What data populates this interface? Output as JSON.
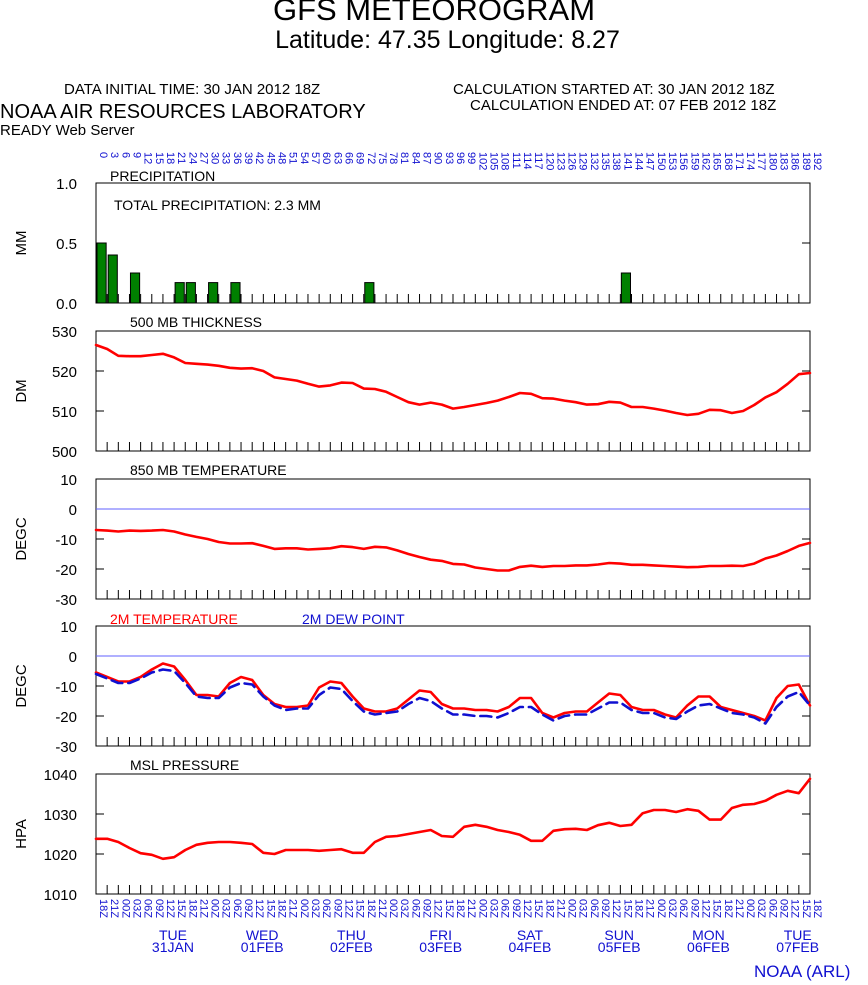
{
  "header": {
    "title": "GFS METEOROGRAM",
    "subtitle": "Latitude: 47.35 Longitude:   8.27",
    "data_initial": "DATA INITIAL TIME: 30 JAN 2012 18Z",
    "calc_started": "CALCULATION STARTED AT: 30 JAN 2012 18Z",
    "calc_ended": "CALCULATION ENDED AT: 07 FEB 2012 18Z",
    "lab": "NOAA AIR RESOURCES LABORATORY",
    "server": "READY Web Server",
    "footer": "NOAA (ARL)"
  },
  "colors": {
    "red": "#ff0000",
    "blue": "#1010d0",
    "green": "#008000",
    "zero_line": "#6060ff"
  },
  "chart_data": {
    "type": "line",
    "forecast_hours": [
      0,
      3,
      6,
      9,
      12,
      15,
      18,
      21,
      24,
      27,
      30,
      33,
      36,
      39,
      42,
      45,
      48,
      51,
      54,
      57,
      60,
      63,
      66,
      69,
      72,
      75,
      78,
      81,
      84,
      87,
      90,
      93,
      96,
      99,
      102,
      105,
      108,
      111,
      114,
      117,
      120,
      123,
      126,
      129,
      132,
      135,
      138,
      141,
      144,
      147,
      150,
      153,
      156,
      159,
      162,
      165,
      168,
      171,
      174,
      177,
      180,
      183,
      186,
      189,
      192
    ],
    "time_labels": [
      "18Z",
      "21Z",
      "00Z",
      "03Z",
      "06Z",
      "09Z",
      "12Z",
      "15Z",
      "18Z",
      "21Z",
      "00Z",
      "03Z",
      "06Z",
      "09Z",
      "12Z",
      "15Z",
      "18Z",
      "21Z",
      "00Z",
      "03Z",
      "06Z",
      "09Z",
      "12Z",
      "15Z",
      "18Z",
      "21Z",
      "00Z",
      "03Z",
      "06Z",
      "09Z",
      "12Z",
      "15Z",
      "18Z",
      "21Z",
      "00Z",
      "03Z",
      "06Z",
      "09Z",
      "12Z",
      "15Z",
      "18Z",
      "21Z",
      "00Z",
      "03Z",
      "06Z",
      "09Z",
      "12Z",
      "15Z",
      "18Z",
      "21Z",
      "00Z",
      "03Z",
      "06Z",
      "09Z",
      "12Z",
      "15Z",
      "18Z",
      "21Z",
      "00Z",
      "03Z",
      "06Z",
      "09Z",
      "12Z",
      "15Z",
      "18Z"
    ],
    "day_labels": [
      {
        "index": 6,
        "day": "TUE",
        "date": "31JAN"
      },
      {
        "index": 14,
        "day": "WED",
        "date": "01FEB"
      },
      {
        "index": 22,
        "day": "THU",
        "date": "02FEB"
      },
      {
        "index": 30,
        "day": "FRI",
        "date": "03FEB"
      },
      {
        "index": 38,
        "day": "SAT",
        "date": "04FEB"
      },
      {
        "index": 46,
        "day": "SUN",
        "date": "05FEB"
      },
      {
        "index": 54,
        "day": "MON",
        "date": "06FEB"
      },
      {
        "index": 62,
        "day": "TUE",
        "date": "07FEB"
      }
    ],
    "panels": [
      {
        "id": "precip",
        "type": "bar",
        "title": "PRECIPITATION",
        "ylabel": "MM",
        "ylim": [
          0,
          1
        ],
        "yticks": [
          0,
          0.5,
          1
        ],
        "ytick_labels": [
          "0.0",
          "0.5",
          "1.0"
        ],
        "annotation": "TOTAL PRECIPITATION:   2.3 MM",
        "bars": [
          {
            "h": 0,
            "v": 0.5
          },
          {
            "h": 3,
            "v": 0.4
          },
          {
            "h": 9,
            "v": 0.25
          },
          {
            "h": 21,
            "v": 0.17
          },
          {
            "h": 24,
            "v": 0.17
          },
          {
            "h": 30,
            "v": 0.17
          },
          {
            "h": 36,
            "v": 0.17
          },
          {
            "h": 72,
            "v": 0.17
          },
          {
            "h": 141,
            "v": 0.25
          }
        ]
      },
      {
        "id": "thickness",
        "type": "line",
        "title": "500 MB  THICKNESS",
        "ylabel": "DM",
        "ylim": [
          500,
          530
        ],
        "yticks": [
          500,
          510,
          520,
          530
        ],
        "ytick_labels": [
          "500",
          "510",
          "520",
          "530"
        ],
        "series": [
          {
            "color": "red",
            "values": [
              526.5,
              525.5,
              523.8,
              523.7,
              523.7,
              524.0,
              524.3,
              523.4,
              522.0,
              521.8,
              521.6,
              521.3,
              520.8,
              520.6,
              520.7,
              520.0,
              518.4,
              518.0,
              517.6,
              516.8,
              516.1,
              516.4,
              517.1,
              517.0,
              515.6,
              515.5,
              514.8,
              513.5,
              512.2,
              511.6,
              512.1,
              511.6,
              510.6,
              511.0,
              511.5,
              512.0,
              512.6,
              513.5,
              514.5,
              514.3,
              513.2,
              513.1,
              512.6,
              512.2,
              511.6,
              511.7,
              512.3,
              512.1,
              511.0,
              511.0,
              510.6,
              510.1,
              509.5,
              509.0,
              509.3,
              510.3,
              510.2,
              509.5,
              510.0,
              511.5,
              513.4,
              514.7,
              516.8,
              519.2,
              519.5
            ]
          }
        ]
      },
      {
        "id": "t850",
        "type": "line",
        "title": "850 MB  TEMPERATURE",
        "ylabel": "DEGC",
        "ylim": [
          -30,
          10
        ],
        "yticks": [
          -30,
          -20,
          -10,
          0,
          10
        ],
        "ytick_labels": [
          "-30",
          "-20",
          "-10",
          "0",
          "10"
        ],
        "zero_line": true,
        "series": [
          {
            "color": "red",
            "values": [
              -7,
              -7.2,
              -7.5,
              -7.2,
              -7.3,
              -7.2,
              -7,
              -7.5,
              -8.5,
              -9.3,
              -10,
              -11,
              -11.5,
              -11.5,
              -11.4,
              -12.3,
              -13.3,
              -13.1,
              -13.1,
              -13.5,
              -13.3,
              -13.1,
              -12.4,
              -12.7,
              -13.3,
              -12.6,
              -12.8,
              -13.8,
              -15,
              -16,
              -16.9,
              -17.3,
              -18.3,
              -18.5,
              -19.5,
              -20,
              -20.5,
              -20.5,
              -19.3,
              -18.9,
              -19.3,
              -19,
              -19,
              -18.8,
              -18.8,
              -18.5,
              -18,
              -18.2,
              -18.6,
              -18.6,
              -18.8,
              -19,
              -19.2,
              -19.4,
              -19.3,
              -19,
              -19,
              -18.9,
              -19,
              -18.2,
              -16.5,
              -15.5,
              -14,
              -12.3,
              -11.3
            ]
          }
        ]
      },
      {
        "id": "t2m",
        "type": "line",
        "ylabel": "DEGC",
        "ylim": [
          -30,
          10
        ],
        "yticks": [
          -30,
          -20,
          -10,
          0,
          10
        ],
        "ytick_labels": [
          "-30",
          "-20",
          "-10",
          "0",
          "10"
        ],
        "zero_line": true,
        "legend": [
          {
            "label": "2M TEMPERATURE",
            "color": "red"
          },
          {
            "label": "2M    DEW POINT",
            "color": "blue"
          }
        ],
        "series": [
          {
            "name": "2M TEMPERATURE",
            "color": "red",
            "dash": false,
            "values": [
              -5.5,
              -7,
              -8.5,
              -8.5,
              -7,
              -4.5,
              -2.5,
              -3.5,
              -8,
              -13,
              -13,
              -13.5,
              -9,
              -7,
              -8,
              -13,
              -16,
              -17,
              -17,
              -16.5,
              -10.5,
              -8.5,
              -9,
              -13.5,
              -17.5,
              -18.5,
              -18.5,
              -17.5,
              -14.5,
              -11.5,
              -12,
              -16,
              -17.5,
              -17.5,
              -18,
              -18,
              -18.5,
              -17,
              -14,
              -14,
              -19,
              -20.5,
              -19,
              -18.5,
              -18.5,
              -15.5,
              -12.5,
              -13,
              -17,
              -18,
              -18,
              -19.5,
              -20.5,
              -16.5,
              -13.5,
              -13.5,
              -17,
              -18,
              -19,
              -20,
              -21.5,
              -14,
              -10,
              -9.5,
              -16.5
            ]
          },
          {
            "name": "2M DEW POINT",
            "color": "blue",
            "dash": true,
            "values": [
              -6,
              -7.5,
              -9,
              -9,
              -7.5,
              -5.5,
              -4.5,
              -5,
              -9,
              -13.5,
              -14,
              -14,
              -10.5,
              -9,
              -9.5,
              -13.5,
              -16.5,
              -18,
              -17.5,
              -17.5,
              -13,
              -10.5,
              -11,
              -15,
              -18.5,
              -19.5,
              -19,
              -18.5,
              -16,
              -14,
              -15,
              -17.5,
              -19.5,
              -19.5,
              -20,
              -20,
              -20.5,
              -19,
              -17,
              -17,
              -19.5,
              -21.5,
              -20,
              -19.5,
              -19.5,
              -17.5,
              -15.5,
              -15.5,
              -18,
              -19,
              -19,
              -20.5,
              -21,
              -18.5,
              -16.5,
              -16,
              -17.5,
              -19,
              -19.5,
              -20.5,
              -22.5,
              -17,
              -13.5,
              -12,
              -16.5
            ]
          }
        ]
      },
      {
        "id": "mslp",
        "type": "line",
        "title": "MSL PRESSURE",
        "ylabel": "HPA",
        "ylim": [
          1010,
          1040
        ],
        "yticks": [
          1010,
          1020,
          1030,
          1040
        ],
        "ytick_labels": [
          "1010",
          "1020",
          "1030",
          "1040"
        ],
        "series": [
          {
            "color": "red",
            "values": [
              1023.8,
              1023.8,
              1023,
              1021.5,
              1020.2,
              1019.8,
              1018.8,
              1019.2,
              1021,
              1022.3,
              1022.8,
              1023,
              1023,
              1022.8,
              1022.5,
              1020.3,
              1020,
              1021,
              1021,
              1021,
              1020.8,
              1021,
              1021.2,
              1020.3,
              1020.3,
              1023,
              1024.3,
              1024.5,
              1025,
              1025.5,
              1026,
              1024.5,
              1024.3,
              1026.8,
              1027.3,
              1026.8,
              1026,
              1025.5,
              1024.8,
              1023.3,
              1023.3,
              1025.8,
              1026.2,
              1026.3,
              1026,
              1027.2,
              1027.8,
              1027,
              1027.3,
              1030.2,
              1031,
              1031,
              1030.5,
              1031.2,
              1030.8,
              1028.6,
              1028.6,
              1031.5,
              1032.3,
              1032.5,
              1033.3,
              1034.8,
              1035.8,
              1035.2,
              1038.8
            ]
          }
        ]
      }
    ]
  }
}
